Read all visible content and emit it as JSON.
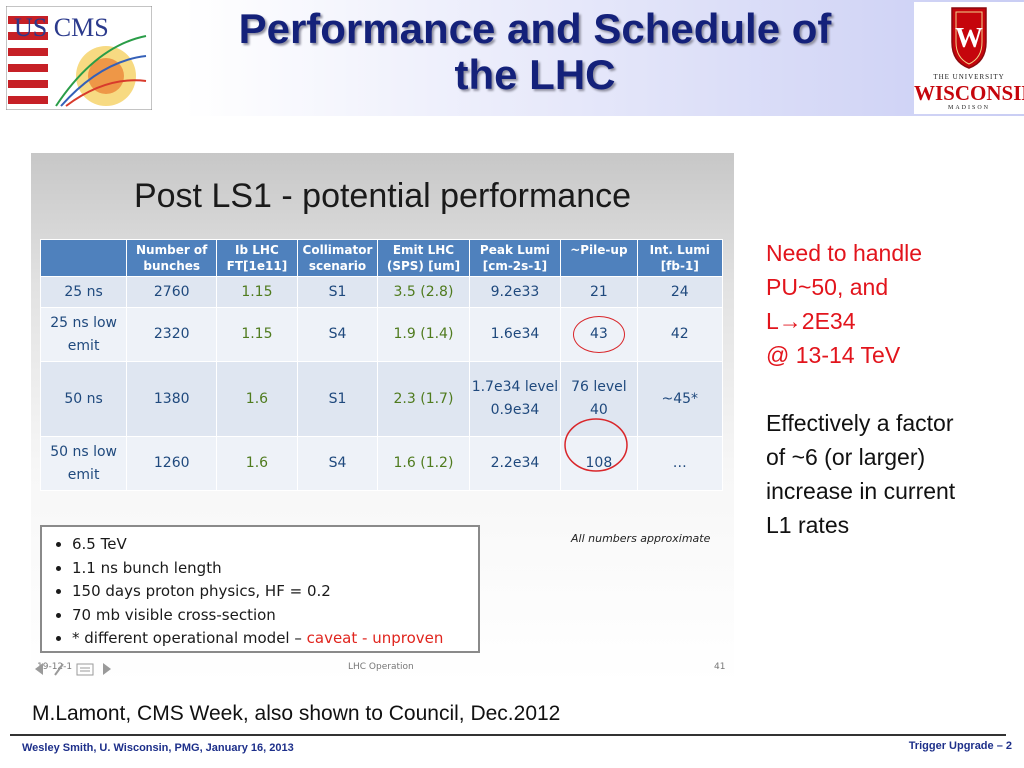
{
  "header": {
    "title_line1": "Performance and Schedule of",
    "title_line2": "the LHC",
    "left_logo_text": "US CMS",
    "right_logo_line1": "THE UNIVERSITY",
    "right_logo_line2": "WISCONSIN",
    "right_logo_line3": "MADISON"
  },
  "embedded_slide": {
    "title": "Post LS1 - potential performance",
    "table": {
      "headers": [
        "",
        "Number of bunches",
        "Ib LHC FT[1e11]",
        "Collimator scenario",
        "Emit LHC (SPS) [um]",
        "Peak Lumi [cm-2s-1]",
        "~Pile-up",
        "Int. Lumi [fb-1]"
      ],
      "rows": [
        [
          "25 ns",
          "2760",
          "1.15",
          "S1",
          "3.5 (2.8)",
          "9.2e33",
          "21",
          "24"
        ],
        [
          "25 ns low emit",
          "2320",
          "1.15",
          "S4",
          "1.9 (1.4)",
          "1.6e34",
          "43",
          "42"
        ],
        [
          "50 ns",
          "1380",
          "1.6",
          "S1",
          "2.3 (1.7)",
          "1.7e34 level 0.9e34",
          "76 level 40",
          "~45*"
        ],
        [
          "50 ns low emit",
          "1260",
          "1.6",
          "S4",
          "1.6 (1.2)",
          "2.2e34",
          "108",
          "…"
        ]
      ]
    },
    "bullets": [
      "6.5 TeV",
      "1.1 ns bunch length",
      "150 days proton physics, HF = 0.2",
      "70 mb visible cross-section",
      "* different operational model – "
    ],
    "caveat": "caveat - unproven",
    "approx_note": "All numbers approximate",
    "footer_date": "19-12-1",
    "footer_center": "LHC Operation",
    "footer_page": "41"
  },
  "side_notes": {
    "line1": "Need to handle",
    "line2": "PU~50, and",
    "line3_prefix": "L",
    "line3_arrow": "→",
    "line3_suffix": "2E34",
    "line4": "@ 13-14 TeV",
    "para2_line1": "Effectively a factor",
    "para2_line2": "of ~6 (or larger)",
    "para2_line3": "increase in current",
    "para2_line4": "L1 rates"
  },
  "citation": "M.Lamont, CMS Week, also shown to Council, Dec.2012",
  "footer": {
    "left": "Wesley Smith, U. Wisconsin, PMG, January 16, 2013",
    "right": "Trigger Upgrade – 2"
  },
  "colors": {
    "title": "#14217a",
    "table_header": "#4f81bd",
    "highlight_red": "#e2141c",
    "footer_text": "#1d2f8a"
  }
}
